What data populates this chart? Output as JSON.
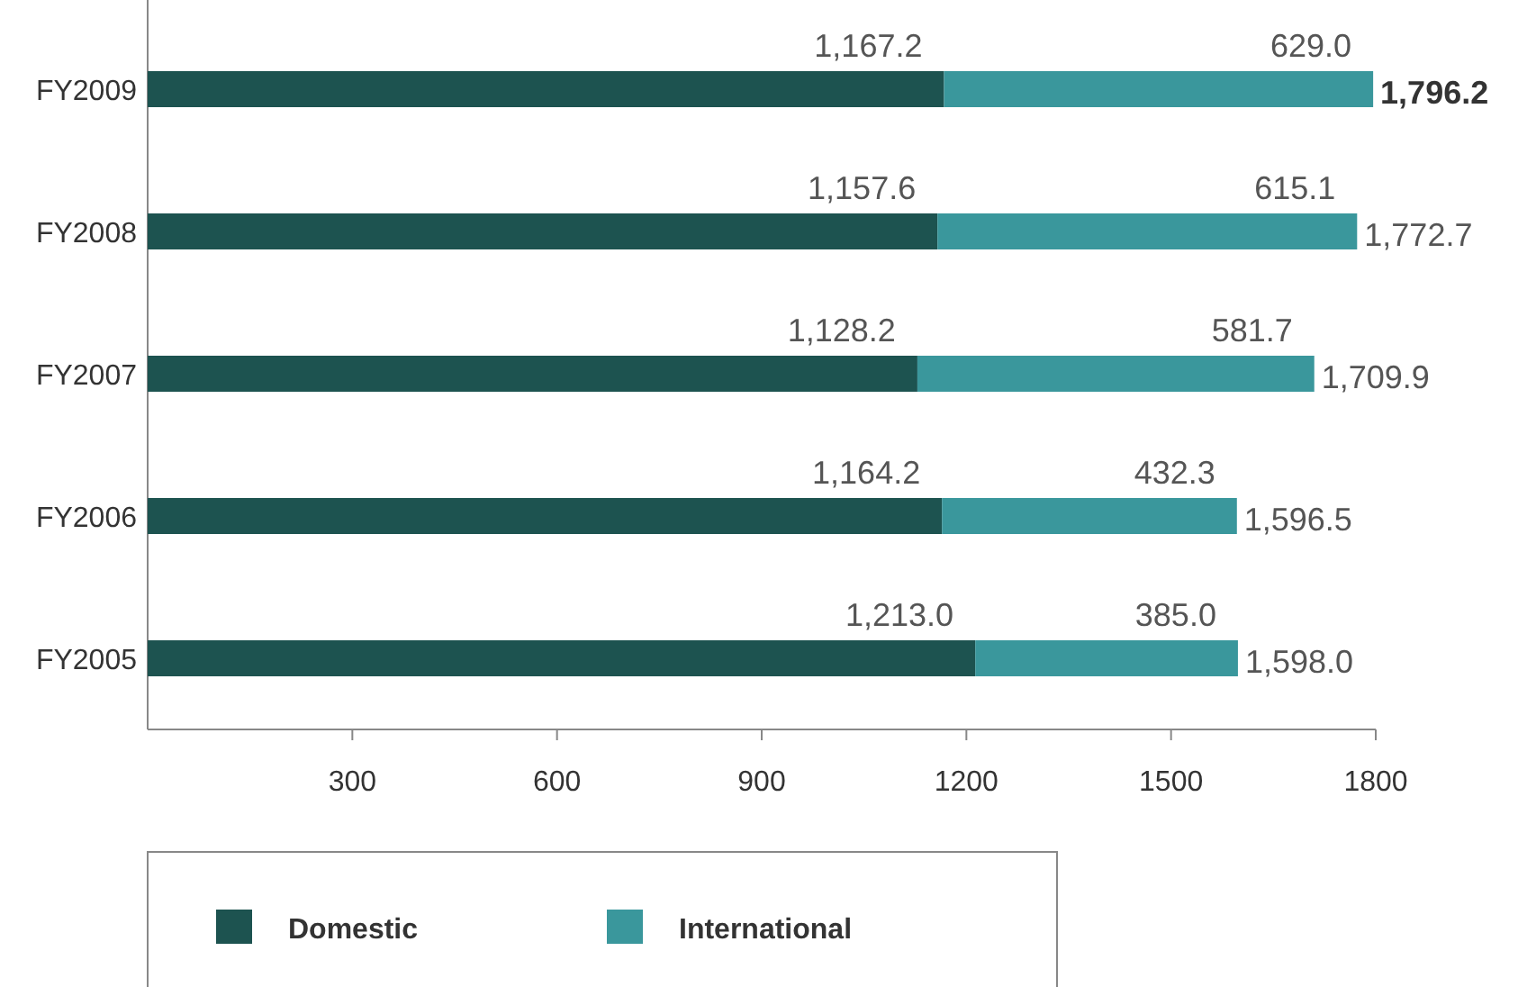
{
  "chart_data": {
    "type": "bar",
    "orientation": "horizontal",
    "stacked": true,
    "categories": [
      "FY2009",
      "FY2008",
      "FY2007",
      "FY2006",
      "FY2005"
    ],
    "series": [
      {
        "name": "Domestic",
        "color": "#1d5350",
        "values": [
          1167.2,
          1157.6,
          1128.2,
          1164.2,
          1213.0
        ],
        "value_labels": [
          "1,167.2",
          "1,157.6",
          "1,128.2",
          "1,164.2",
          "1,213.0"
        ]
      },
      {
        "name": "International",
        "color": "#3a979c",
        "values": [
          629.0,
          615.1,
          581.7,
          432.3,
          385.0
        ],
        "value_labels": [
          "629.0",
          "615.1",
          "581.7",
          "432.3",
          "385.0"
        ]
      }
    ],
    "totals": [
      "1,796.2",
      "1,772.7",
      "1,709.9",
      "1,596.5",
      "1,598.0"
    ],
    "xlim": [
      0,
      1800
    ],
    "xticks": [
      300,
      600,
      900,
      1200,
      1500,
      1800
    ],
    "grid": false,
    "legend": "bottom"
  }
}
